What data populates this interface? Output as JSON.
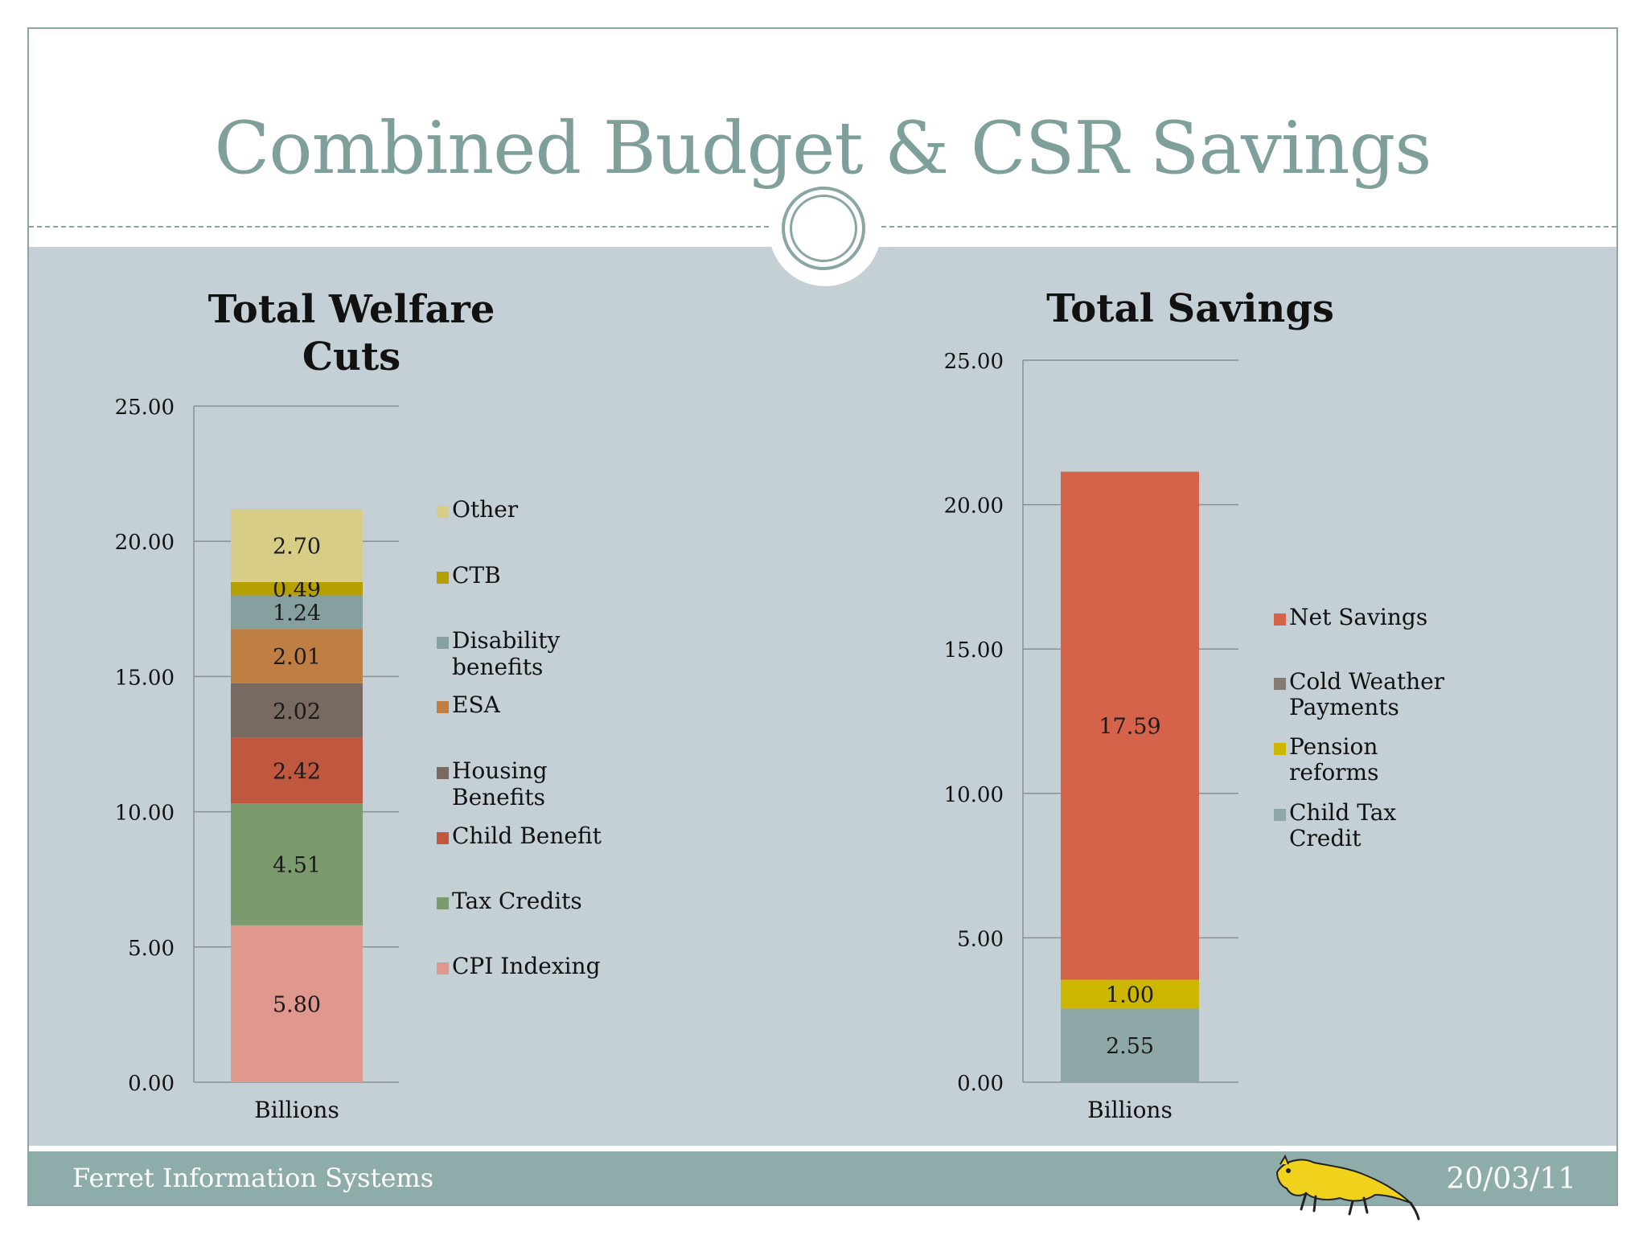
{
  "slide": {
    "title": "Combined Budget & CSR Savings",
    "footer_left": "Ferret Information Systems",
    "footer_right": "20/03/11",
    "logo_icon": "ferret-logo-icon"
  },
  "colors": {
    "title": "#7f9f9a",
    "accent": "#8aa6a4",
    "panel": "#c5d0d6",
    "footer": "#8eaca9"
  },
  "chart_data": [
    {
      "type": "bar",
      "stacked": true,
      "title": "Total Welfare Cuts",
      "categories": [
        "Billions"
      ],
      "ylim": [
        0,
        25
      ],
      "yticks": [
        "0.00",
        "5.00",
        "10.00",
        "15.00",
        "20.00",
        "25.00"
      ],
      "grid": true,
      "legend_position": "right",
      "series": [
        {
          "name": "CPI Indexing",
          "values": [
            5.8
          ],
          "label": "5.80",
          "color": "#e0978e"
        },
        {
          "name": "Tax Credits",
          "values": [
            4.51
          ],
          "label": "4.51",
          "color": "#7b9a6e"
        },
        {
          "name": "Child Benefit",
          "values": [
            2.42
          ],
          "label": "2.42",
          "color": "#c05840"
        },
        {
          "name": "Housing Benefits",
          "values": [
            2.02
          ],
          "label": "2.02",
          "color": "#786a60"
        },
        {
          "name": "ESA",
          "values": [
            2.01
          ],
          "label": "2.01",
          "color": "#bf7f44"
        },
        {
          "name": "Disability benefits",
          "values": [
            1.24
          ],
          "label": "1.24",
          "color": "#86a0a0"
        },
        {
          "name": "CTB",
          "values": [
            0.49
          ],
          "label": "0.49",
          "color": "#b6a000"
        },
        {
          "name": "Other",
          "values": [
            2.7
          ],
          "label": "2.70",
          "color": "#d8cd86"
        }
      ]
    },
    {
      "type": "bar",
      "stacked": true,
      "title": "Total Savings",
      "categories": [
        "Billions"
      ],
      "ylim": [
        0,
        25
      ],
      "yticks": [
        "0.00",
        "5.00",
        "10.00",
        "15.00",
        "20.00",
        "25.00"
      ],
      "grid": true,
      "legend_position": "right",
      "series": [
        {
          "name": "Child Tax Credit",
          "values": [
            2.55
          ],
          "label": "2.55",
          "color": "#8ea8a8"
        },
        {
          "name": "Pension reforms",
          "values": [
            1.0
          ],
          "label": "1.00",
          "color": "#ccb600"
        },
        {
          "name": "Cold Weather Payments",
          "values": [
            0
          ],
          "label": "",
          "color": "#857a74"
        },
        {
          "name": "Net Savings",
          "values": [
            17.59
          ],
          "label": "17.59",
          "color": "#d4634a"
        }
      ]
    }
  ]
}
